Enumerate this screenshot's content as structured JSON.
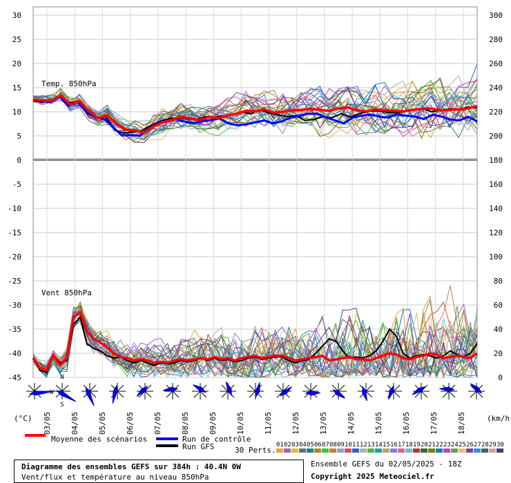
{
  "chart_data": {
    "type": "line",
    "title": "Diagramme des ensembles GEFS sur 384h : 40.4N 0W",
    "subtitle": "Vent/flux et température au niveau 850hPa",
    "panels": {
      "temperature": {
        "label": "Temp. 850hPa",
        "left_axis_ticks": [
          "30",
          "25",
          "20",
          "15",
          "10",
          "5",
          "0"
        ],
        "ylim": [
          0,
          30
        ]
      },
      "wind": {
        "label": "Vent 850hPa",
        "right_axis_ticks": [
          "300",
          "280",
          "260",
          "240",
          "220",
          "200",
          "180",
          "160",
          "140",
          "120",
          "100",
          "80",
          "60",
          "40",
          "20",
          "0"
        ],
        "left_axis_ticks": [
          "-5",
          "-10",
          "-15",
          "-20",
          "-25",
          "-30",
          "-35",
          "-40",
          "-45"
        ]
      }
    },
    "left_unit": "(°C)",
    "right_unit": "(km/h)",
    "dates": [
      "03/05",
      "04/05",
      "05/05",
      "06/05",
      "07/05",
      "08/05",
      "09/05",
      "10/05",
      "11/05",
      "12/05",
      "13/05",
      "14/05",
      "15/05",
      "16/05",
      "17/05",
      "18/05"
    ],
    "series": [
      {
        "name": "Moyenne des scénarios",
        "color": "#ff0000",
        "temp": [
          12.5,
          12.4,
          12.2,
          13.4,
          11.5,
          12.2,
          10.2,
          8.6,
          9.3,
          7.5,
          6.3,
          6.1,
          5.7,
          7.0,
          7.8,
          8.3,
          8.9,
          8.6,
          8.3,
          8.9,
          8.7,
          9.2,
          9.6,
          10.2,
          10.1,
          10.5,
          9.8,
          10.0,
          10.3,
          10.4,
          10.6,
          10.4,
          10.2,
          10.7,
          10.9,
          10.3,
          10.1,
          10.5,
          10.3,
          10.2,
          10.1,
          10.4,
          10.6,
          10.7,
          10.3,
          10.4,
          10.5,
          10.7,
          11.2
        ],
        "wind": [
          16,
          8,
          6,
          18,
          10,
          16,
          50,
          54,
          38,
          32,
          29,
          25,
          20,
          17,
          16,
          14,
          15,
          14,
          12,
          13,
          12,
          14,
          15,
          14,
          15,
          16,
          15,
          17,
          15,
          16,
          14,
          16,
          17,
          18,
          16,
          17,
          18,
          18,
          16,
          14,
          15,
          16,
          17,
          18,
          14,
          15,
          16,
          17,
          15,
          15,
          14,
          16,
          18,
          20,
          19,
          16,
          15,
          17,
          18,
          20,
          19,
          16,
          17,
          18,
          17,
          16,
          20
        ]
      },
      {
        "name": "Run de contrôle",
        "color": "#0000ff",
        "temp": [
          12.5,
          12.2,
          12.0,
          13.1,
          11.2,
          12.0,
          10.0,
          8.8,
          8.5,
          6.8,
          5.1,
          5.2,
          5.0,
          6.6,
          7.5,
          8.2,
          8.5,
          8.0,
          7.6,
          8.0,
          8.3,
          8.6,
          7.6,
          7.2,
          7.4,
          7.8,
          8.2,
          7.6,
          8.0,
          8.8,
          9.2,
          9.6,
          9.6,
          8.8,
          8.2,
          7.6,
          8.8,
          9.2,
          9.4,
          9.0,
          8.8,
          9.5,
          9.2,
          9.0,
          8.5,
          9.4,
          9.0,
          8.4,
          8.2,
          9.0,
          8.0
        ]
      },
      {
        "name": "Run GFS",
        "color": "#000000",
        "temp": [
          12.3,
          12.0,
          12.2,
          13.2,
          11.8,
          12.1,
          9.6,
          8.8,
          9.0,
          6.2,
          5.6,
          5.8,
          6.1,
          7.2,
          8.0,
          8.6,
          8.7,
          8.5,
          8.4,
          9.0,
          8.9,
          9.1,
          9.4,
          10.0,
          9.6,
          10.4,
          9.8,
          9.4,
          9.0,
          9.2,
          8.2,
          8.4,
          9.0,
          8.8,
          9.6,
          8.9,
          9.6,
          10.1,
          10.2,
          9.9,
          9.8,
          10.0,
          10.4,
          10.6,
          10.0,
          10.4,
          10.6,
          10.5,
          11.0,
          10.8
        ],
        "wind": [
          16,
          6,
          4,
          18,
          12,
          14,
          44,
          50,
          28,
          24,
          22,
          18,
          16,
          17,
          14,
          12,
          14,
          12,
          10,
          12,
          11,
          12,
          14,
          13,
          14,
          16,
          14,
          16,
          14,
          15,
          13,
          14,
          16,
          17,
          15,
          16,
          17,
          17,
          14,
          12,
          14,
          15,
          20,
          26,
          32,
          30,
          22,
          16,
          17,
          16,
          18,
          22,
          30,
          40,
          34,
          20,
          16,
          18,
          19,
          18,
          16,
          18,
          22,
          19,
          17,
          20,
          28
        ]
      }
    ],
    "legend_perts_label": "30 Perts.",
    "perturbations": [
      "01",
      "02",
      "03",
      "04",
      "05",
      "06",
      "07",
      "08",
      "09",
      "10",
      "11",
      "12",
      "13",
      "14",
      "15",
      "16",
      "17",
      "18",
      "19",
      "20",
      "21",
      "22",
      "23",
      "24",
      "25",
      "26",
      "27",
      "28",
      "29",
      "30"
    ],
    "pert_colors": [
      "#e8a040",
      "#a060c0",
      "#d8c030",
      "#607080",
      "#208080",
      "#b08030",
      "#40c040",
      "#c08040",
      "#90a0c0",
      "#d05050",
      "#3060d0",
      "#b0b0b0",
      "#50b050",
      "#20a0a0",
      "#c0a060",
      "#8080e0",
      "#e06090",
      "#60c0e0",
      "#a04020",
      "#406040",
      "#808000",
      "#0080c0",
      "#c040c0",
      "#60a060",
      "#e0c080",
      "#8040a0",
      "#3090f0",
      "#506050",
      "#d0a0a0",
      "#404080"
    ],
    "wind_rose_compass": [
      "N",
      "W",
      "S"
    ]
  },
  "legend": {
    "mean": "Moyenne des scénarios",
    "control": "Run de contrôle",
    "gfs": "Run GFS",
    "perts": "30 Perts."
  },
  "footer": {
    "title": "Diagramme des ensembles GEFS sur 384h : 40.4N 0W",
    "subtitle": "Vent/flux et température au niveau 850hPa",
    "run_info": "Ensemble GEFS du 02/05/2025 - 18Z",
    "copyright": "Copyright 2025 Meteociel.fr"
  }
}
